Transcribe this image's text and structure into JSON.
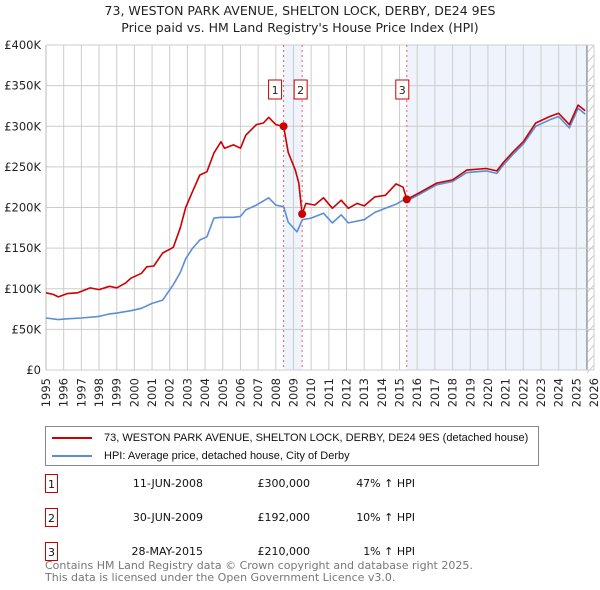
{
  "chart_data": {
    "type": "line",
    "title": "73, WESTON PARK AVENUE, SHELTON LOCK, DERBY, DE24 9ES",
    "subtitle": "Price paid vs. HM Land Registry's House Price Index (HPI)",
    "xlim": [
      1995,
      2026
    ],
    "ylim": [
      0,
      400000
    ],
    "yticks": [
      {
        "v": 0,
        "label": "£0"
      },
      {
        "v": 50000,
        "label": "£50K"
      },
      {
        "v": 100000,
        "label": "£100K"
      },
      {
        "v": 150000,
        "label": "£150K"
      },
      {
        "v": 200000,
        "label": "£200K"
      },
      {
        "v": 250000,
        "label": "£250K"
      },
      {
        "v": 300000,
        "label": "£300K"
      },
      {
        "v": 350000,
        "label": "£350K"
      },
      {
        "v": 400000,
        "label": "£400K"
      }
    ],
    "xticks": [
      "1995",
      "1996",
      "1997",
      "1998",
      "1999",
      "2000",
      "2001",
      "2002",
      "2003",
      "2004",
      "2005",
      "2006",
      "2007",
      "2008",
      "2009",
      "2010",
      "2011",
      "2012",
      "2013",
      "2014",
      "2015",
      "2016",
      "2017",
      "2018",
      "2019",
      "2020",
      "2021",
      "2022",
      "2023",
      "2024",
      "2025",
      "2026"
    ],
    "grid": true,
    "shaded_ranges": [
      [
        2008.44,
        2009.49
      ],
      [
        2015.41,
        2025.6
      ]
    ],
    "forecast_hatch_from": 2025.6,
    "series": [
      {
        "name": "73, WESTON PARK AVENUE, SHELTON LOCK, DERBY, DE24 9ES (detached house)",
        "color": "#cc0000",
        "x": [
          1995,
          1995.4,
          1995.7,
          1996.2,
          1996.8,
          1997.5,
          1998,
          1998.6,
          1999,
          1999.5,
          1999.8,
          2000.4,
          2000.7,
          2001.1,
          2001.6,
          2002.2,
          2002.6,
          2002.9,
          2003.3,
          2003.7,
          2004.1,
          2004.5,
          2004.9,
          2005.1,
          2005.6,
          2006,
          2006.3,
          2006.9,
          2007.3,
          2007.6,
          2008,
          2008.44,
          2008.7,
          2009.1,
          2009.3,
          2009.49,
          2009.7,
          2010.2,
          2010.7,
          2011.2,
          2011.7,
          2012.1,
          2012.6,
          2013,
          2013.6,
          2014.2,
          2014.8,
          2015.2,
          2015.41,
          2016.1,
          2017.1,
          2018,
          2018.8,
          2019.9,
          2020.5,
          2020.9,
          2021.4,
          2022,
          2022.7,
          2023.5,
          2024,
          2024.6,
          2025.1,
          2025.5
        ],
        "values": [
          95000,
          93000,
          90000,
          94000,
          95000,
          101000,
          99000,
          103000,
          101000,
          107000,
          113000,
          119000,
          127000,
          128000,
          144000,
          151000,
          175000,
          200000,
          220000,
          240000,
          244000,
          267000,
          281000,
          273000,
          277000,
          273000,
          289000,
          302000,
          304000,
          311000,
          302000,
          300000,
          268000,
          246000,
          230000,
          192000,
          205000,
          203000,
          212000,
          199000,
          209000,
          199000,
          205000,
          202000,
          213000,
          215000,
          229000,
          225000,
          210000,
          218000,
          230000,
          234000,
          246000,
          248000,
          245000,
          256000,
          268000,
          281000,
          304000,
          312000,
          316000,
          302000,
          326000,
          319000
        ]
      },
      {
        "name": "HPI: Average price, detached house, City of Derby",
        "color": "#5b8ed6",
        "x": [
          1995,
          1995.7,
          1996.2,
          1997,
          1998,
          1998.6,
          1999,
          1999.8,
          2000.4,
          2001,
          2001.6,
          2002.2,
          2002.6,
          2002.9,
          2003.3,
          2003.7,
          2004.1,
          2004.5,
          2004.9,
          2005.6,
          2006,
          2006.3,
          2006.9,
          2007.6,
          2008,
          2008.44,
          2008.7,
          2009.2,
          2009.5,
          2010,
          2010.7,
          2011.2,
          2011.7,
          2012.1,
          2013,
          2013.6,
          2014.2,
          2014.8,
          2015.2,
          2015.41,
          2016.1,
          2017.1,
          2018,
          2018.8,
          2019.9,
          2020.5,
          2020.9,
          2021.4,
          2022,
          2022.7,
          2023.5,
          2024,
          2024.6,
          2025.1,
          2025.5
        ],
        "values": [
          64000,
          62000,
          63000,
          64000,
          66000,
          69000,
          70000,
          73000,
          76000,
          82000,
          86000,
          105000,
          120000,
          137000,
          150000,
          160000,
          164000,
          187000,
          188000,
          188000,
          189000,
          197000,
          203000,
          212000,
          203000,
          201000,
          182000,
          170000,
          185000,
          187000,
          193000,
          181000,
          191000,
          181000,
          185000,
          194000,
          199000,
          204000,
          209000,
          208000,
          216000,
          228000,
          232000,
          243000,
          245000,
          242000,
          253000,
          265000,
          278000,
          300000,
          308000,
          312000,
          298000,
          322000,
          315000
        ]
      }
    ],
    "sales": [
      {
        "id": "1",
        "x": 2008.44,
        "price": 300000
      },
      {
        "id": "2",
        "x": 2009.49,
        "price": 192000
      },
      {
        "id": "3",
        "x": 2015.41,
        "price": 210000
      }
    ]
  },
  "legend": {
    "property": "73, WESTON PARK AVENUE, SHELTON LOCK, DERBY, DE24 9ES (detached house)",
    "hpi": "HPI: Average price, detached house, City of Derby"
  },
  "transactions": [
    {
      "id": "1",
      "date": "11-JUN-2008",
      "price": "£300,000",
      "hpi": "47% ↑ HPI"
    },
    {
      "id": "2",
      "date": "30-JUN-2009",
      "price": "£192,000",
      "hpi": "10% ↑ HPI"
    },
    {
      "id": "3",
      "date": "28-MAY-2015",
      "price": "£210,000",
      "hpi": "1% ↑ HPI"
    }
  ],
  "footer": {
    "line1": "Contains HM Land Registry data © Crown copyright and database right 2025.",
    "line2": "This data is licensed under the Open Government Licence v3.0."
  },
  "colors": {
    "property": "#cc0000",
    "hpi": "#5b8ed6",
    "shade": "#eef3fc",
    "grid": "#cccccc"
  }
}
